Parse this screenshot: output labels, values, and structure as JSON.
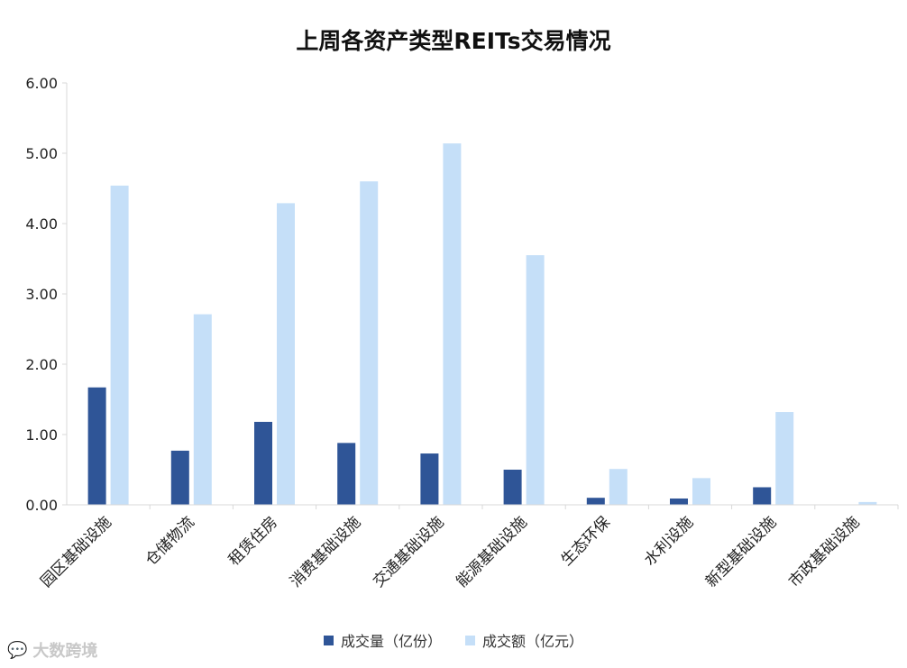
{
  "chart_data": {
    "type": "bar",
    "title": "上周各资产类型REITs交易情况",
    "categories": [
      "园区基础设施",
      "仓储物流",
      "租赁住房",
      "消费基础设施",
      "交通基础设施",
      "能源基础设施",
      "生态环保",
      "水利设施",
      "新型基础设施",
      "市政基础设施"
    ],
    "series": [
      {
        "name": "成交量（亿份）",
        "color": "#2f5597",
        "values": [
          1.67,
          0.77,
          1.18,
          0.88,
          0.73,
          0.5,
          0.1,
          0.09,
          0.25,
          0.0
        ]
      },
      {
        "name": "成交额（亿元）",
        "color": "#c5dff8",
        "values": [
          4.54,
          2.71,
          4.29,
          4.6,
          5.14,
          3.55,
          0.51,
          0.38,
          1.32,
          0.04
        ]
      }
    ],
    "ylim": [
      0,
      6
    ],
    "yticks": [
      "0.00",
      "1.00",
      "2.00",
      "3.00",
      "4.00",
      "5.00",
      "6.00"
    ],
    "legend_position": "bottom",
    "grid": false
  },
  "watermark": {
    "icon": "chat-bubble-icon",
    "text": "大数跨境"
  }
}
